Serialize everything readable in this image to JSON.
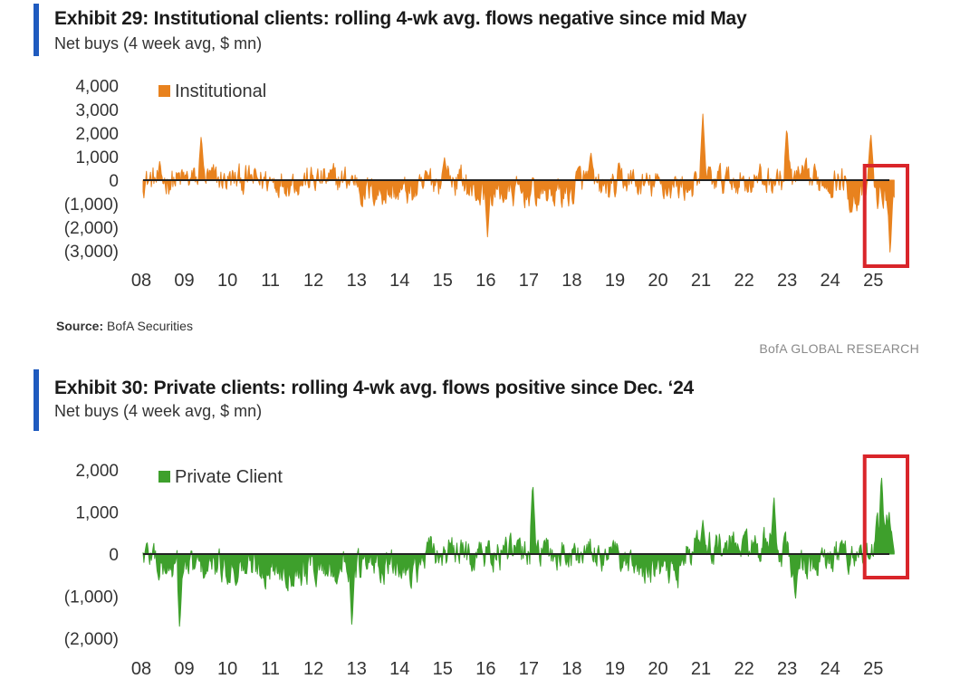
{
  "exhibit29": {
    "title": "Exhibit 29: Institutional clients: rolling 4-wk avg. flows negative since mid May",
    "subtitle": "Net buys (4 week avg, $ mn)",
    "source_label": "Source:",
    "source_text": "BofA Securities",
    "footer_brand": "BofA GLOBAL RESEARCH"
  },
  "exhibit30": {
    "title": "Exhibit 30: Private clients: rolling 4-wk avg. flows positive since Dec. ‘24",
    "subtitle": "Net buys (4 week avg, $ mn)"
  },
  "chart_data": [
    {
      "type": "area",
      "series": [
        {
          "name": "Institutional",
          "color": "#e8821e"
        }
      ],
      "ylim": [
        -3000,
        4000
      ],
      "yticks": [
        4000,
        3000,
        2000,
        1000,
        0,
        -1000,
        -2000,
        -3000
      ],
      "ytick_labels": [
        "4,000",
        "3,000",
        "2,000",
        "1,000",
        "0",
        "(1,000)",
        "(2,000)",
        "(3,000)"
      ],
      "xlim": [
        2008,
        2025.5
      ],
      "xticks": [
        2008,
        2009,
        2010,
        2011,
        2012,
        2013,
        2014,
        2015,
        2016,
        2017,
        2018,
        2019,
        2020,
        2021,
        2022,
        2023,
        2024,
        2025
      ],
      "xtick_labels": [
        "08",
        "09",
        "10",
        "11",
        "12",
        "13",
        "14",
        "15",
        "16",
        "17",
        "18",
        "19",
        "20",
        "21",
        "22",
        "23",
        "24",
        "25"
      ],
      "legend": "top-left",
      "highlight": {
        "x_from": 2024.8,
        "x_to": 2025.5,
        "color": "#d9252a"
      },
      "peaks": [
        {
          "x": 2009.35,
          "y": 1900
        },
        {
          "x": 2015.0,
          "y": 950
        },
        {
          "x": 2016.0,
          "y": -2400
        },
        {
          "x": 2018.4,
          "y": 1200
        },
        {
          "x": 2021.0,
          "y": 2800
        },
        {
          "x": 2022.95,
          "y": 2300
        },
        {
          "x": 2024.9,
          "y": 2000
        },
        {
          "x": 2025.35,
          "y": -3200
        }
      ]
    },
    {
      "type": "area",
      "series": [
        {
          "name": "Private Client",
          "color": "#3ea02c"
        }
      ],
      "ylim": [
        -2000,
        2000
      ],
      "yticks": [
        2000,
        1000,
        0,
        -1000,
        -2000
      ],
      "ytick_labels": [
        "2,000",
        "1,000",
        "0",
        "(1,000)",
        "(2,000)"
      ],
      "xlim": [
        2008,
        2025.5
      ],
      "xticks": [
        2008,
        2009,
        2010,
        2011,
        2012,
        2013,
        2014,
        2015,
        2016,
        2017,
        2018,
        2019,
        2020,
        2021,
        2022,
        2023,
        2024,
        2025
      ],
      "xtick_labels": [
        "08",
        "09",
        "10",
        "11",
        "12",
        "13",
        "14",
        "15",
        "16",
        "17",
        "18",
        "19",
        "20",
        "21",
        "22",
        "23",
        "24",
        "25"
      ],
      "legend": "top-left",
      "highlight": {
        "x_from": 2024.8,
        "x_to": 2025.5,
        "color": "#d9252a"
      },
      "peaks": [
        {
          "x": 2008.85,
          "y": -1800
        },
        {
          "x": 2012.85,
          "y": -1750
        },
        {
          "x": 2017.05,
          "y": 1750
        },
        {
          "x": 2021.0,
          "y": 800
        },
        {
          "x": 2022.65,
          "y": 1400
        },
        {
          "x": 2023.15,
          "y": -1100
        },
        {
          "x": 2025.15,
          "y": 2000
        }
      ]
    }
  ]
}
